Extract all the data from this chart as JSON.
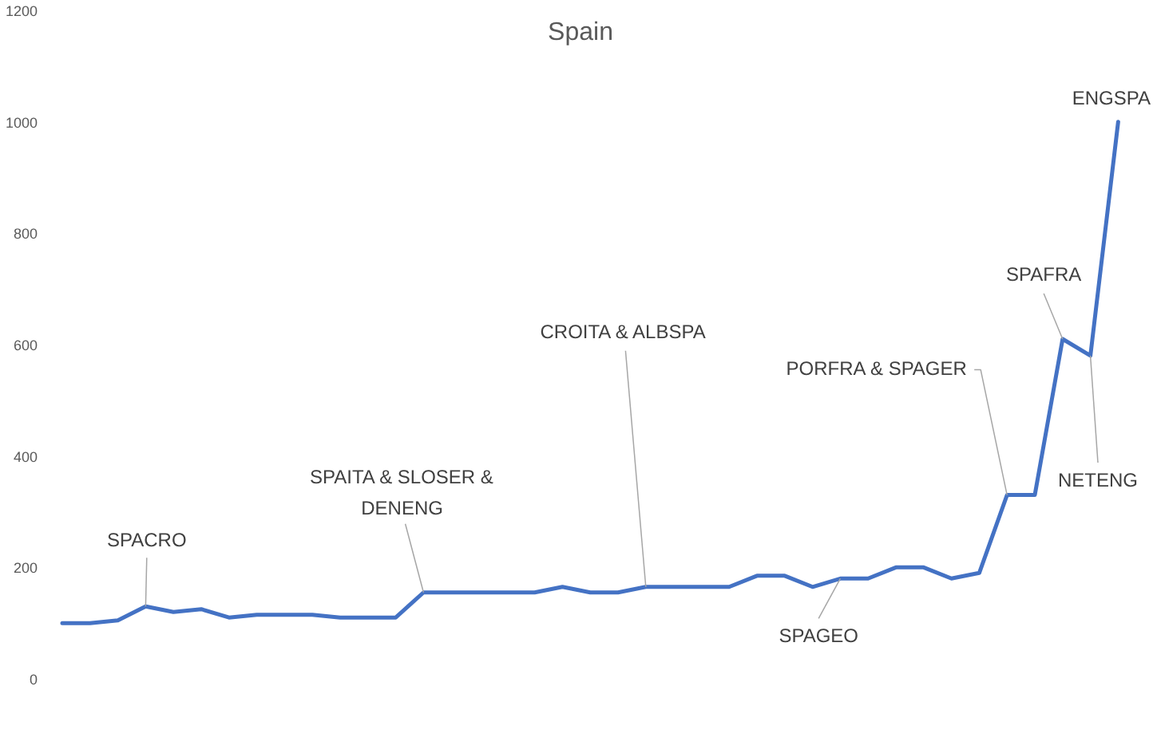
{
  "chart_data": {
    "type": "line",
    "title": "Spain",
    "categories": [
      null,
      null,
      null,
      null,
      null,
      null,
      null,
      null,
      null,
      null,
      null,
      null,
      null,
      null,
      null,
      null,
      null,
      null,
      null,
      null,
      null,
      null,
      null,
      null,
      null,
      null,
      null,
      null,
      null,
      null,
      null,
      null,
      null,
      null,
      null,
      null,
      null,
      null,
      null
    ],
    "series": [
      {
        "color": "#4472c4",
        "values": [
          100,
          100,
          105,
          130,
          120,
          125,
          110,
          115,
          115,
          115,
          110,
          110,
          110,
          155,
          155,
          155,
          155,
          155,
          165,
          155,
          155,
          165,
          165,
          165,
          165,
          185,
          185,
          165,
          180,
          180,
          200,
          200,
          180,
          190,
          330,
          330,
          610,
          580,
          1000
        ]
      }
    ],
    "ylim": [
      0,
      1200
    ],
    "yticks": [
      0,
      200,
      400,
      600,
      800,
      1000,
      1200
    ],
    "tick_labels": "y",
    "grid": false,
    "line_style": "solid",
    "annotations": [
      {
        "text": "SPACRO",
        "y": 130
      },
      "SPAITA & SLOSER & DENENG",
      "CROITA & ALBSPA",
      {
        "text": "SPAGEO",
        "y": 180
      },
      "PORFRA & SPAGER",
      "SPAFRA",
      {
        "text": "NETENG",
        "y": 580
      },
      {
        "text": "ENGSPA",
        "y": 1000
      }
    ]
  }
}
